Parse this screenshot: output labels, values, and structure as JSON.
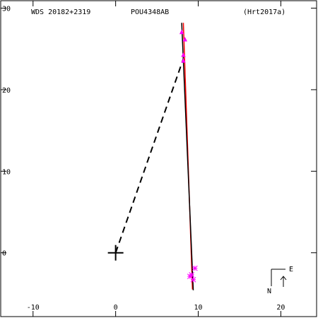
{
  "header": {
    "left": "WDS 20182+2319",
    "center": "POU4348AB",
    "right": "(Hrt2017a)"
  },
  "compass": {
    "east_label": "E",
    "north_label": "N"
  },
  "colors": {
    "frame": "#000000",
    "orbit": "#ff0000",
    "observation": "#ff00ff",
    "background": "#ffffff"
  },
  "chart_data": {
    "type": "scatter",
    "title": "",
    "xlabel": "",
    "ylabel": "",
    "xlim": [
      -14,
      24.5
    ],
    "ylim": [
      -8,
      31
    ],
    "x_ticks": [
      -10,
      0,
      10,
      20
    ],
    "y_ticks": [
      0,
      10,
      20,
      30
    ],
    "x_tick_labels": [
      "-10",
      "0",
      "10",
      "20"
    ],
    "y_tick_labels": [
      "0",
      "10",
      "20",
      "30"
    ],
    "grid": false,
    "primary": {
      "x": 0,
      "y": 0
    },
    "secondary_connector": {
      "from": [
        0,
        0
      ],
      "to": [
        8.2,
        23.8
      ]
    },
    "orbit_arc": [
      [
        8.2,
        28.2
      ],
      [
        9.3,
        -4.5
      ]
    ],
    "fit_line": [
      [
        8.0,
        28.2
      ],
      [
        9.4,
        -4.6
      ]
    ],
    "observations_triangles": [
      {
        "x": 8.0,
        "y": 27.1
      },
      {
        "x": 8.4,
        "y": 26.2
      },
      {
        "x": 8.2,
        "y": 24.3
      },
      {
        "x": 8.2,
        "y": 23.6
      }
    ],
    "observations_stars": [
      {
        "x": 9.2,
        "y": -2.7
      },
      {
        "x": 9.6,
        "y": -1.9
      },
      {
        "x": 9.0,
        "y": -2.9
      },
      {
        "x": 9.4,
        "y": -3.3
      }
    ]
  }
}
